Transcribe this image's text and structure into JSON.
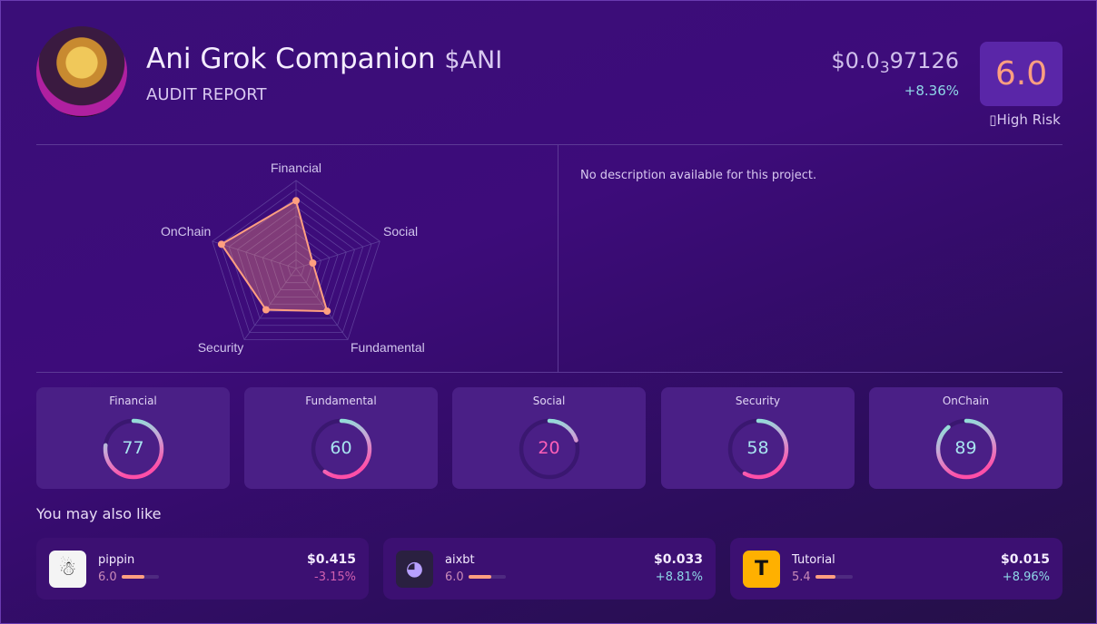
{
  "header": {
    "title": "Ani Grok Companion",
    "symbol": "$ANI",
    "subtitle": "AUDIT REPORT",
    "price_prefix": "$0.0",
    "price_zeros": "3",
    "price_rest": "97126",
    "change": "+8.36%",
    "score": "6.0",
    "risk_label": "▯High Risk"
  },
  "description": "No description available for this project.",
  "radar": {
    "axes": [
      "Financial",
      "Social",
      "Fundamental",
      "Security",
      "OnChain"
    ],
    "values": [
      77,
      20,
      60,
      58,
      89
    ],
    "max": 100
  },
  "scores": [
    {
      "label": "Financial",
      "value": 77,
      "text": "77"
    },
    {
      "label": "Fundamental",
      "value": 60,
      "text": "60"
    },
    {
      "label": "Social",
      "value": 20,
      "text": "20"
    },
    {
      "label": "Security",
      "value": 58,
      "text": "58"
    },
    {
      "label": "OnChain",
      "value": 89,
      "text": "89"
    }
  ],
  "also": {
    "title": "You may also like",
    "items": [
      {
        "name": "pippin",
        "score": "6.0",
        "score_pct": 60,
        "price": "$0.415",
        "change": "-3.15%",
        "negative": true
      },
      {
        "name": "aixbt",
        "score": "6.0",
        "score_pct": 60,
        "price": "$0.033",
        "change": "+8.81%",
        "negative": false
      },
      {
        "name": "Tutorial",
        "score": "5.4",
        "score_pct": 54,
        "price": "$0.015",
        "change": "+8.96%",
        "negative": false
      }
    ]
  },
  "colors": {
    "accent": "#ff9f80",
    "positive": "#8fd8e8",
    "negative": "#d060b0"
  }
}
